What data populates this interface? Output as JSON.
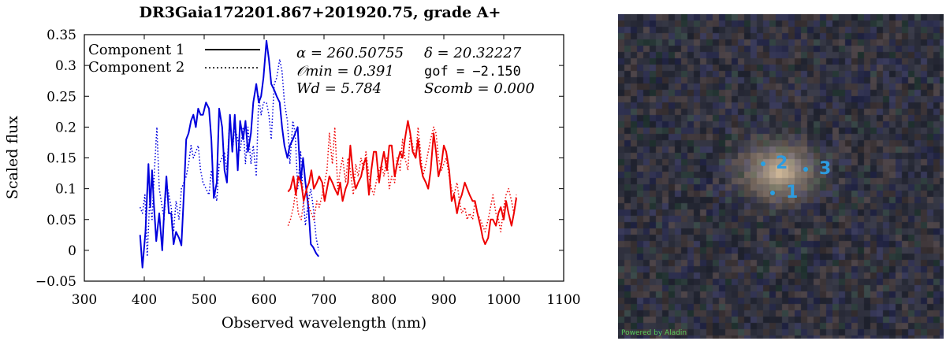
{
  "chart_data": {
    "type": "line",
    "title": "DR3Gaia172201.867+201920.75, grade A+",
    "xlabel": "Observed wavelength (nm)",
    "ylabel": "Scaled flux",
    "xlim": [
      300,
      1100
    ],
    "ylim": [
      -0.05,
      0.35
    ],
    "xticks": [
      300,
      400,
      500,
      600,
      700,
      800,
      900,
      1000,
      1100
    ],
    "yticks": [
      -0.05,
      0,
      0.05,
      0.1,
      0.15,
      0.2,
      0.25,
      0.3,
      0.35
    ],
    "grid": false,
    "legend": {
      "placement": "top-left",
      "entries": [
        {
          "label": "Component 1",
          "style": "solid"
        },
        {
          "label": "Component 2",
          "style": "dotted"
        }
      ]
    },
    "annotations": {
      "alpha": "α = 260.50755",
      "delta": "δ = 20.32227",
      "omin": "𝒪min = 0.391",
      "gof": "gof = −2.150",
      "wd": "Wd = 5.784",
      "scomb": "Scomb = 0.000"
    },
    "series": [
      {
        "name": "Component 1",
        "color": "#0000dd",
        "style": "solid",
        "x": [
          393,
          397,
          402,
          407,
          410,
          413,
          416,
          420,
          425,
          430,
          433,
          437,
          441,
          445,
          449,
          453,
          458,
          462,
          466,
          470,
          474,
          478,
          482,
          486,
          490,
          494,
          498,
          503,
          508,
          512,
          516,
          521,
          525,
          530,
          534,
          538,
          543,
          547,
          551,
          556,
          560,
          565,
          569,
          573,
          578,
          582,
          587,
          591,
          595,
          599,
          604,
          608,
          612,
          617,
          621,
          626,
          630,
          634,
          639,
          643,
          648,
          652,
          656,
          661,
          665,
          669,
          674,
          678,
          682,
          687,
          691
        ],
        "y": [
          0.025,
          -0.028,
          0.03,
          0.14,
          0.07,
          0.13,
          0.075,
          0.015,
          0.06,
          0.0,
          0.06,
          0.12,
          0.06,
          0.06,
          0.01,
          0.03,
          0.02,
          0.008,
          0.09,
          0.18,
          0.19,
          0.21,
          0.22,
          0.2,
          0.23,
          0.22,
          0.22,
          0.24,
          0.23,
          0.18,
          0.085,
          0.11,
          0.23,
          0.2,
          0.13,
          0.11,
          0.22,
          0.16,
          0.22,
          0.13,
          0.21,
          0.18,
          0.21,
          0.16,
          0.19,
          0.24,
          0.27,
          0.24,
          0.25,
          0.28,
          0.34,
          0.31,
          0.27,
          0.26,
          0.25,
          0.24,
          0.2,
          0.17,
          0.15,
          0.17,
          0.18,
          0.19,
          0.2,
          0.11,
          0.15,
          0.11,
          0.07,
          0.01,
          0.005,
          -0.005,
          -0.01
        ]
      },
      {
        "name": "Component 2",
        "color": "#0000dd",
        "style": "dotted",
        "x": [
          393,
          397,
          401,
          405,
          409,
          413,
          417,
          421,
          425,
          430,
          433,
          437,
          441,
          445,
          449,
          453,
          458,
          462,
          466,
          470,
          474,
          478,
          482,
          486,
          490,
          494,
          498,
          503,
          508,
          512,
          516,
          521,
          525,
          530,
          534,
          538,
          543,
          547,
          551,
          556,
          560,
          565,
          569,
          573,
          578,
          582,
          587,
          591,
          595,
          599,
          604,
          608,
          612,
          617,
          621,
          626,
          630,
          634,
          639,
          643,
          648,
          652,
          656,
          661,
          665,
          669,
          674,
          678,
          682,
          687,
          691
        ],
        "y": [
          0.07,
          0.06,
          0.09,
          -0.01,
          0.08,
          0.05,
          0.13,
          0.2,
          0.1,
          0.07,
          0.05,
          0.11,
          0.09,
          0.07,
          0.03,
          0.08,
          0.05,
          0.1,
          0.11,
          0.12,
          0.14,
          0.17,
          0.15,
          0.16,
          0.17,
          0.13,
          0.11,
          0.1,
          0.09,
          0.13,
          0.1,
          0.08,
          0.14,
          0.15,
          0.16,
          0.13,
          0.22,
          0.16,
          0.2,
          0.18,
          0.16,
          0.2,
          0.14,
          0.2,
          0.14,
          0.17,
          0.12,
          0.25,
          0.22,
          0.24,
          0.24,
          0.22,
          0.18,
          0.27,
          0.28,
          0.31,
          0.29,
          0.24,
          0.21,
          0.14,
          0.21,
          0.19,
          0.1,
          0.16,
          0.09,
          0.04,
          0.08,
          0.1,
          0.07,
          0.02,
          0.0
        ]
      },
      {
        "name": "Component 1",
        "color": "#ee0000",
        "style": "solid",
        "x": [
          640,
          644,
          649,
          653,
          657,
          662,
          666,
          671,
          675,
          679,
          683,
          688,
          692,
          697,
          701,
          705,
          709,
          714,
          718,
          723,
          727,
          731,
          736,
          740,
          744,
          749,
          753,
          757,
          762,
          766,
          770,
          775,
          779,
          783,
          787,
          792,
          796,
          800,
          805,
          809,
          813,
          818,
          822,
          827,
          831,
          835,
          840,
          844,
          848,
          853,
          857,
          861,
          865,
          870,
          874,
          878,
          883,
          887,
          891,
          896,
          900,
          904,
          909,
          913,
          917,
          922,
          926,
          930,
          935,
          939,
          943,
          948,
          952,
          956,
          961,
          965,
          969,
          974,
          978,
          982,
          987,
          991,
          995,
          1000,
          1004,
          1008,
          1013,
          1017,
          1021
        ],
        "y": [
          0.095,
          0.1,
          0.12,
          0.09,
          0.12,
          0.11,
          0.08,
          0.1,
          0.11,
          0.13,
          0.1,
          0.11,
          0.12,
          0.11,
          0.08,
          0.1,
          0.12,
          0.11,
          0.1,
          0.09,
          0.11,
          0.08,
          0.1,
          0.11,
          0.17,
          0.12,
          0.1,
          0.11,
          0.12,
          0.14,
          0.15,
          0.09,
          0.13,
          0.16,
          0.16,
          0.11,
          0.14,
          0.16,
          0.13,
          0.17,
          0.17,
          0.12,
          0.14,
          0.16,
          0.15,
          0.18,
          0.21,
          0.19,
          0.16,
          0.15,
          0.18,
          0.14,
          0.12,
          0.11,
          0.1,
          0.13,
          0.19,
          0.16,
          0.12,
          0.14,
          0.17,
          0.16,
          0.13,
          0.08,
          0.09,
          0.06,
          0.08,
          0.09,
          0.11,
          0.1,
          0.09,
          0.08,
          0.08,
          0.06,
          0.04,
          0.02,
          0.01,
          0.02,
          0.05,
          0.05,
          0.04,
          0.06,
          0.07,
          0.05,
          0.08,
          0.06,
          0.04,
          0.06,
          0.085
        ]
      },
      {
        "name": "Component 2",
        "color": "#ee0000",
        "style": "dotted",
        "x": [
          640,
          644,
          649,
          653,
          657,
          662,
          666,
          671,
          675,
          679,
          683,
          688,
          692,
          697,
          701,
          705,
          709,
          714,
          718,
          723,
          727,
          731,
          736,
          740,
          744,
          749,
          753,
          757,
          762,
          766,
          770,
          775,
          779,
          783,
          787,
          792,
          796,
          800,
          805,
          809,
          813,
          818,
          822,
          827,
          831,
          835,
          840,
          844,
          848,
          853,
          857,
          861,
          865,
          870,
          874,
          878,
          883,
          887,
          891,
          896,
          900,
          904,
          909,
          913,
          917,
          922,
          926,
          930,
          935,
          939,
          943,
          948,
          952,
          956,
          961,
          965,
          969,
          974,
          978,
          982,
          987,
          991,
          995,
          1000,
          1004,
          1008,
          1013,
          1017,
          1021
        ],
        "y": [
          0.04,
          0.05,
          0.07,
          0.1,
          0.06,
          0.05,
          0.08,
          0.1,
          0.07,
          0.06,
          0.05,
          0.08,
          0.07,
          0.09,
          0.11,
          0.13,
          0.19,
          0.14,
          0.2,
          0.1,
          0.13,
          0.15,
          0.11,
          0.15,
          0.13,
          0.09,
          0.14,
          0.12,
          0.15,
          0.13,
          0.16,
          0.12,
          0.1,
          0.09,
          0.11,
          0.13,
          0.14,
          0.12,
          0.15,
          0.1,
          0.12,
          0.11,
          0.15,
          0.13,
          0.18,
          0.15,
          0.13,
          0.19,
          0.17,
          0.15,
          0.2,
          0.16,
          0.12,
          0.14,
          0.16,
          0.18,
          0.2,
          0.19,
          0.15,
          0.13,
          0.14,
          0.15,
          0.12,
          0.1,
          0.09,
          0.11,
          0.08,
          0.06,
          0.07,
          0.05,
          0.06,
          0.05,
          0.08,
          0.06,
          0.05,
          0.04,
          0.03,
          0.05,
          0.07,
          0.09,
          0.06,
          0.05,
          0.03,
          0.07,
          0.09,
          0.1,
          0.08,
          0.06,
          0.09
        ]
      }
    ]
  },
  "sky_image": {
    "credit": "Powered by Aladin",
    "sources": [
      {
        "label": "1",
        "dot": [
          196,
          227
        ],
        "text": [
          213,
          216
        ]
      },
      {
        "label": "2",
        "dot": [
          184,
          190
        ],
        "text": [
          200,
          179
        ]
      },
      {
        "label": "3",
        "dot": [
          238,
          197
        ],
        "text": [
          255,
          186
        ]
      }
    ]
  }
}
